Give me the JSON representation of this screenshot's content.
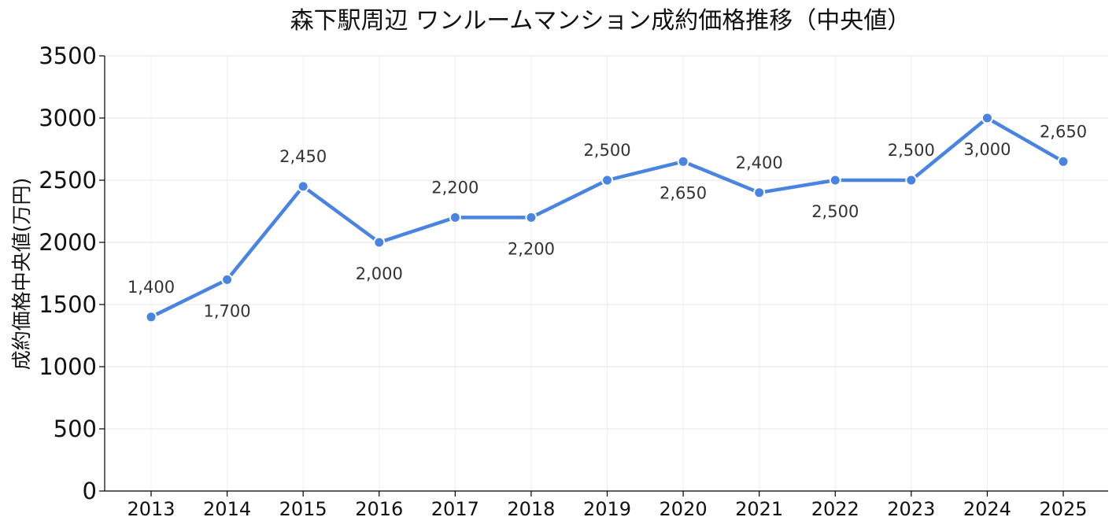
{
  "chart_data": {
    "type": "line",
    "title": "森下駅周辺 ワンルームマンション成約価格推移（中央値）",
    "ylabel": "成約価格中央値(万円)",
    "xlabel": "",
    "categories": [
      "2013",
      "2014",
      "2015",
      "2016",
      "2017",
      "2018",
      "2019",
      "2020",
      "2021",
      "2022",
      "2023",
      "2024",
      "2025"
    ],
    "series": [
      {
        "values": [
          1400,
          1700,
          2450,
          2000,
          2200,
          2200,
          2500,
          2650,
          2400,
          2500,
          2500,
          3000,
          2650
        ],
        "data_labels": [
          "1,400",
          "1,700",
          "2,450",
          "2,000",
          "2,200",
          "2,200",
          "2,500",
          "2,650",
          "2,400",
          "2,500",
          "2,500",
          "3,000",
          "2,650"
        ],
        "label_positions": [
          "above",
          "below",
          "above",
          "below",
          "above",
          "below",
          "above",
          "below",
          "above",
          "below",
          "above",
          "below",
          "above"
        ]
      }
    ],
    "ylim": [
      0,
      3500
    ],
    "yticks": [
      0,
      500,
      1000,
      1500,
      2000,
      2500,
      3000,
      3500
    ],
    "grid": true,
    "legend": "none",
    "colors": {
      "line": "#4a84e3",
      "marker_edge": "#ffffff",
      "grid": "#e6e6e6",
      "axis": "#000000"
    }
  }
}
